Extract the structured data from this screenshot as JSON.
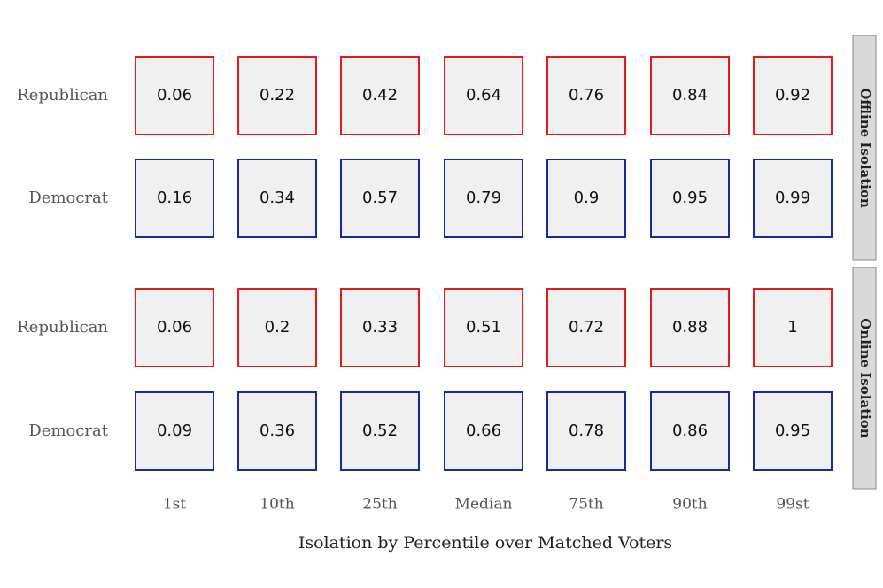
{
  "chart_data": {
    "type": "table",
    "xlabel": "Isolation by Percentile over Matched Voters",
    "categories": [
      "1st",
      "10th",
      "25th",
      "Median",
      "75th",
      "90th",
      "99st"
    ],
    "colors": {
      "Republican": "#e8191c",
      "Democrat": "#1a2a9c",
      "cell_fill": "#f0f0f0",
      "strip_fill": "#d9d9d9"
    },
    "panels": [
      {
        "name": "Offline Isolation",
        "rows": [
          {
            "label": "Republican",
            "values": [
              "0.06",
              "0.22",
              "0.42",
              "0.64",
              "0.76",
              "0.84",
              "0.92"
            ]
          },
          {
            "label": "Democrat",
            "values": [
              "0.16",
              "0.34",
              "0.57",
              "0.79",
              "0.9",
              "0.95",
              "0.99"
            ]
          }
        ]
      },
      {
        "name": "Online Isolation",
        "rows": [
          {
            "label": "Republican",
            "values": [
              "0.06",
              "0.2",
              "0.33",
              "0.51",
              "0.72",
              "0.88",
              "1"
            ]
          },
          {
            "label": "Democrat",
            "values": [
              "0.09",
              "0.36",
              "0.52",
              "0.66",
              "0.78",
              "0.86",
              "0.95"
            ]
          }
        ]
      }
    ]
  }
}
